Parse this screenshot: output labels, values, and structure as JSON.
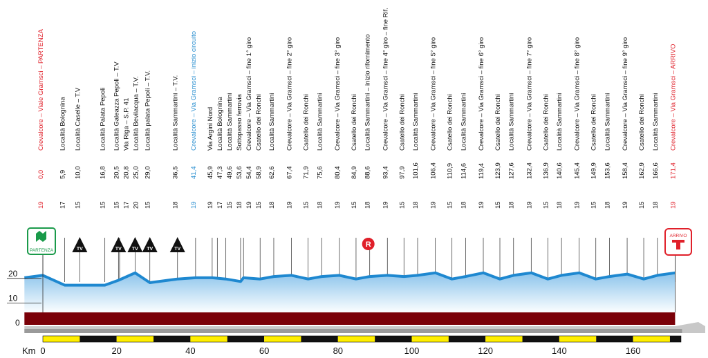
{
  "colors": {
    "start": "#1a9a4a",
    "finish": "#e0202a",
    "circuit": "#2a8fd0",
    "text": "#111111",
    "profile_line": "#1e88d0",
    "profile_fill_top": "#8cc4ec",
    "profile_fill_bottom": "#ffffff",
    "base_band": "#7a0008",
    "ruler_yellow": "#ffee00",
    "ruler_black": "#111111",
    "road_gray": "#9a9a9a"
  },
  "badges": {
    "start_text": "PARTENZA",
    "finish_text": "ARRIVO",
    "tv_text": "TV",
    "refuel_text": "R"
  },
  "chart_data": {
    "type": "area",
    "xlabel": "Km",
    "ylabel": "",
    "xlim": [
      0,
      173
    ],
    "ylim": [
      0,
      25
    ],
    "x_ticks": [
      0,
      20,
      40,
      60,
      80,
      100,
      120,
      140,
      160
    ],
    "x_tick_labels": [
      "0",
      "20",
      "40",
      "60",
      "80",
      "100",
      "120",
      "140",
      "160"
    ],
    "y_ticks": [
      0,
      10,
      20
    ],
    "y_tick_labels": [
      "0",
      "10",
      "20"
    ],
    "grid": false,
    "series": [
      {
        "x": [
          -5,
          0,
          5.9,
          10,
          16.8,
          20.5,
          25,
          29,
          36.5,
          41.4,
          45.9,
          49.6,
          53.6,
          54.4,
          58.9,
          62.6,
          67.4,
          71.9,
          75.6,
          80.4,
          84.9,
          88.6,
          93.4,
          97.9,
          101.6,
          106.4,
          110.9,
          114.6,
          119.4,
          123.9,
          127.6,
          132.4,
          136.9,
          140.6,
          145.4,
          149.9,
          153.6,
          158.4,
          162.9,
          166.6,
          171.4
        ],
        "y": [
          18,
          19,
          15,
          15,
          15,
          17,
          20,
          16,
          17.5,
          18,
          18,
          17.5,
          16.5,
          18,
          17.5,
          18.5,
          19,
          17.5,
          18.5,
          19,
          17.5,
          18.5,
          19,
          18.5,
          19,
          20,
          17.5,
          18.5,
          20,
          17.5,
          19,
          20,
          17.5,
          19,
          20,
          17.5,
          18.5,
          19.5,
          17.5,
          19,
          20
        ]
      }
    ],
    "waypoints": [
      {
        "km": "0,0",
        "alt": "19",
        "name_a": "Crevalcore – Viale Gramsci – ",
        "name_b": "PARTENZA",
        "style": "start"
      },
      {
        "km": "5,9",
        "alt": "17",
        "name": "Località Bolognina"
      },
      {
        "km": "10,0",
        "alt": "15",
        "name": "Località Caselle – T.V"
      },
      {
        "km": "16,8",
        "alt": "15",
        "name": "Località Palata Pepoli"
      },
      {
        "km": "20,5",
        "alt": "15",
        "name": "Località Galeazza Pepoli – T.V"
      },
      {
        "km": "20,8",
        "alt": "17",
        "name": "Via Riga – S.P. 41"
      },
      {
        "km": "25,0",
        "alt": "20",
        "name": "Località Bevilacqua – T.V."
      },
      {
        "km": "29,0",
        "alt": "15",
        "name": "Località palata Pepoli – T.V."
      },
      {
        "km": "36,5",
        "alt": "18",
        "name": "Località Sammartini – T.V."
      },
      {
        "km": "41,4",
        "alt": "19",
        "name": "Crevalcore – Via Gramsci – inizio circuito",
        "style": "circuit"
      },
      {
        "km": "45,9",
        "alt": "19",
        "name": "Via Argini Nord"
      },
      {
        "km": "47,3",
        "alt": "17",
        "name": "Località Bolognina"
      },
      {
        "km": "49,6",
        "alt": "15",
        "name": "Località Sammartini"
      },
      {
        "km": "53,6",
        "alt": "18",
        "name": "Sottopasso ferrovia"
      },
      {
        "km": "54,4",
        "alt": "19",
        "name": "Crevalcore – Via Gramsci – fine 1° giro"
      },
      {
        "km": "58,9",
        "alt": "15",
        "name": "Csatello dei Ronchi"
      },
      {
        "km": "62,6",
        "alt": "18",
        "name": "Località Sammartini"
      },
      {
        "km": "67,4",
        "alt": "19",
        "name": "Crevalcore – Via Gramsci – fine 2° giro"
      },
      {
        "km": "71,9",
        "alt": "15",
        "name": "Csatello dei Ronchi"
      },
      {
        "km": "75,6",
        "alt": "18",
        "name": "Località Sammartini"
      },
      {
        "km": "80,4",
        "alt": "19",
        "name": "Crevalcore – Via Gramsci – fine 3° giro"
      },
      {
        "km": "84,9",
        "alt": "15",
        "name": "Csatello dei Ronchi"
      },
      {
        "km": "88,6",
        "alt": "18",
        "name": "Località Sammartini – inizio rifornimento"
      },
      {
        "km": "93,4",
        "alt": "19",
        "name": "Crevalcore – Via Gramsci – fine 4° giro – fine Rif."
      },
      {
        "km": "97,9",
        "alt": "15",
        "name": "Csatello dei Ronchi"
      },
      {
        "km": "101,6",
        "alt": "18",
        "name": "Località Sammartini"
      },
      {
        "km": "106,4",
        "alt": "19",
        "name": "Crevalcore – Via Gramsci – fine 5° giro"
      },
      {
        "km": "110,9",
        "alt": "15",
        "name": "Csatello dei Ronchi"
      },
      {
        "km": "114,6",
        "alt": "18",
        "name": "Località Sammartini"
      },
      {
        "km": "119,4",
        "alt": "19",
        "name": "Crevalcore – Via Gramsci – fine 6° giro"
      },
      {
        "km": "123,9",
        "alt": "15",
        "name": "Csatello dei Ronchi"
      },
      {
        "km": "127,6",
        "alt": "18",
        "name": "Località Sammartini"
      },
      {
        "km": "132,4",
        "alt": "19",
        "name": "Crevalcore – Via Gramsci – fine 7° giro"
      },
      {
        "km": "136,9",
        "alt": "15",
        "name": "Csatello dei Ronchi"
      },
      {
        "km": "140,6",
        "alt": "18",
        "name": "Località Sammartini"
      },
      {
        "km": "145,4",
        "alt": "19",
        "name": "Crevalcore – Via Gramsci – fine 8° giro"
      },
      {
        "km": "149,9",
        "alt": "15",
        "name": "Csatello dei Ronchi"
      },
      {
        "km": "153,6",
        "alt": "18",
        "name": "Località Sammartini"
      },
      {
        "km": "158,4",
        "alt": "19",
        "name": "Crevalcore – Via Gramsci – fine 9° giro"
      },
      {
        "km": "162,9",
        "alt": "15",
        "name": "Csatello dei Ronchi"
      },
      {
        "km": "166,6",
        "alt": "18",
        "name": "Località Sammartini"
      },
      {
        "km": "171,4",
        "alt": "19",
        "name_a": "Crevalcore – Via Gramsci – ",
        "name_b": "ARRIVO",
        "style": "finish"
      }
    ],
    "tv_markers_km": [
      10.0,
      20.5,
      25.0,
      29.0,
      36.5
    ],
    "refuel_marker_km": 88.6
  }
}
